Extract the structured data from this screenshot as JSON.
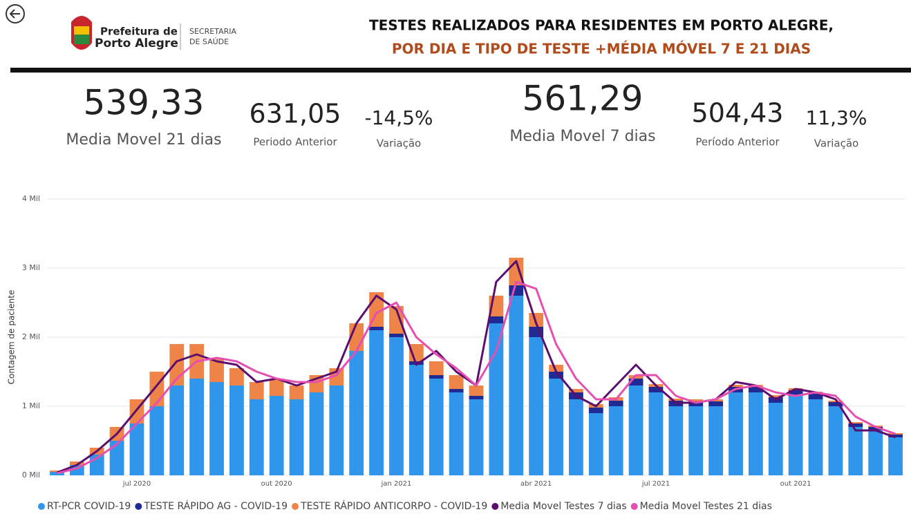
{
  "header": {
    "logo_line1": "Prefeitura de",
    "logo_line2": "Porto Alegre",
    "dept_line1": "SECRETARIA",
    "dept_line2": "DE SAÚDE",
    "title_line1": "TESTES REALIZADOS PARA RESIDENTES EM PORTO ALEGRE,",
    "title_line2": "POR DIA E TIPO DE TESTE +MÉDIA MÓVEL 7 E 21 DIAS"
  },
  "kpis": [
    {
      "value": "539,33",
      "label": "Media Movel 21 dias"
    },
    {
      "value": "631,05",
      "label": "Periodo Anterior"
    },
    {
      "value": "-14,5%",
      "label": "Variação"
    },
    {
      "value": "561,29",
      "label": "Media Movel 7 dias"
    },
    {
      "value": "504,43",
      "label": "Período Anterior"
    },
    {
      "value": "11,3%",
      "label": "Variação"
    }
  ],
  "chart_data": {
    "type": "bar",
    "stacked": true,
    "y_label": "Contagem de paciente",
    "grid": true,
    "categories": [
      null,
      null,
      null,
      null,
      "jul 2020",
      null,
      null,
      null,
      null,
      null,
      null,
      "out 2020",
      null,
      null,
      null,
      null,
      null,
      "jan 2021",
      null,
      null,
      null,
      null,
      null,
      null,
      "abr 2021",
      null,
      null,
      null,
      null,
      null,
      "jul 2021",
      null,
      null,
      null,
      null,
      null,
      null,
      "out 2021",
      null,
      null,
      null,
      null,
      null
    ],
    "ylim": [
      0,
      4000
    ],
    "yticks": [
      {
        "value": 0,
        "label": "0 Mil"
      },
      {
        "value": 1000,
        "label": "1 Mil"
      },
      {
        "value": 2000,
        "label": "2 Mil"
      },
      {
        "value": 3000,
        "label": "3 Mil"
      },
      {
        "value": 4000,
        "label": "4 Mil"
      }
    ],
    "series": [
      {
        "name": "RT-PCR COVID-19",
        "color": "#2f96ec",
        "type": "bar",
        "values": [
          50,
          150,
          300,
          500,
          750,
          1000,
          1300,
          1400,
          1350,
          1300,
          1100,
          1150,
          1100,
          1200,
          1300,
          1800,
          2100,
          2000,
          1600,
          1400,
          1200,
          1100,
          2200,
          2600,
          2000,
          1400,
          1100,
          900,
          1000,
          1300,
          1200,
          1000,
          1000,
          1000,
          1200,
          1200,
          1050,
          1150,
          1100,
          1000,
          700,
          650,
          550
        ]
      },
      {
        "name": "TESTE RÁPIDO AG - COVID-19",
        "color": "#1f2a94",
        "type": "bar",
        "values": [
          0,
          0,
          0,
          0,
          0,
          0,
          0,
          0,
          0,
          0,
          0,
          0,
          0,
          0,
          0,
          0,
          50,
          50,
          50,
          50,
          50,
          50,
          100,
          150,
          150,
          100,
          100,
          80,
          80,
          100,
          80,
          80,
          70,
          70,
          80,
          80,
          80,
          80,
          80,
          60,
          50,
          50,
          40
        ]
      },
      {
        "name": "TESTE RÁPIDO ANTICORPO - COVID-19",
        "color": "#ee8448",
        "type": "bar",
        "values": [
          20,
          50,
          100,
          200,
          350,
          500,
          600,
          500,
          350,
          250,
          250,
          250,
          200,
          250,
          250,
          400,
          500,
          400,
          250,
          200,
          200,
          150,
          300,
          400,
          200,
          100,
          50,
          50,
          50,
          50,
          40,
          30,
          30,
          30,
          30,
          30,
          30,
          30,
          30,
          20,
          20,
          20,
          20
        ]
      },
      {
        "name": "Media Movel Testes 7 dias",
        "color": "#5b0e6e",
        "type": "line",
        "values": [
          40,
          150,
          350,
          600,
          950,
          1300,
          1650,
          1750,
          1650,
          1600,
          1350,
          1400,
          1300,
          1400,
          1500,
          2200,
          2600,
          2400,
          1600,
          1800,
          1500,
          1300,
          2800,
          3100,
          2200,
          1500,
          1150,
          1000,
          1300,
          1600,
          1300,
          1050,
          1050,
          1100,
          1350,
          1300,
          1100,
          1250,
          1200,
          1100,
          650,
          650,
          550
        ]
      },
      {
        "name": "Media Movel Testes 21 dias",
        "color": "#e64fb0",
        "type": "line",
        "values": [
          30,
          100,
          250,
          450,
          750,
          1050,
          1400,
          1650,
          1700,
          1650,
          1500,
          1400,
          1350,
          1350,
          1450,
          1800,
          2350,
          2500,
          2000,
          1750,
          1550,
          1300,
          1800,
          2800,
          2700,
          1900,
          1400,
          1100,
          1100,
          1450,
          1450,
          1150,
          1050,
          1100,
          1250,
          1300,
          1200,
          1150,
          1200,
          1150,
          850,
          700,
          600
        ]
      }
    ]
  }
}
